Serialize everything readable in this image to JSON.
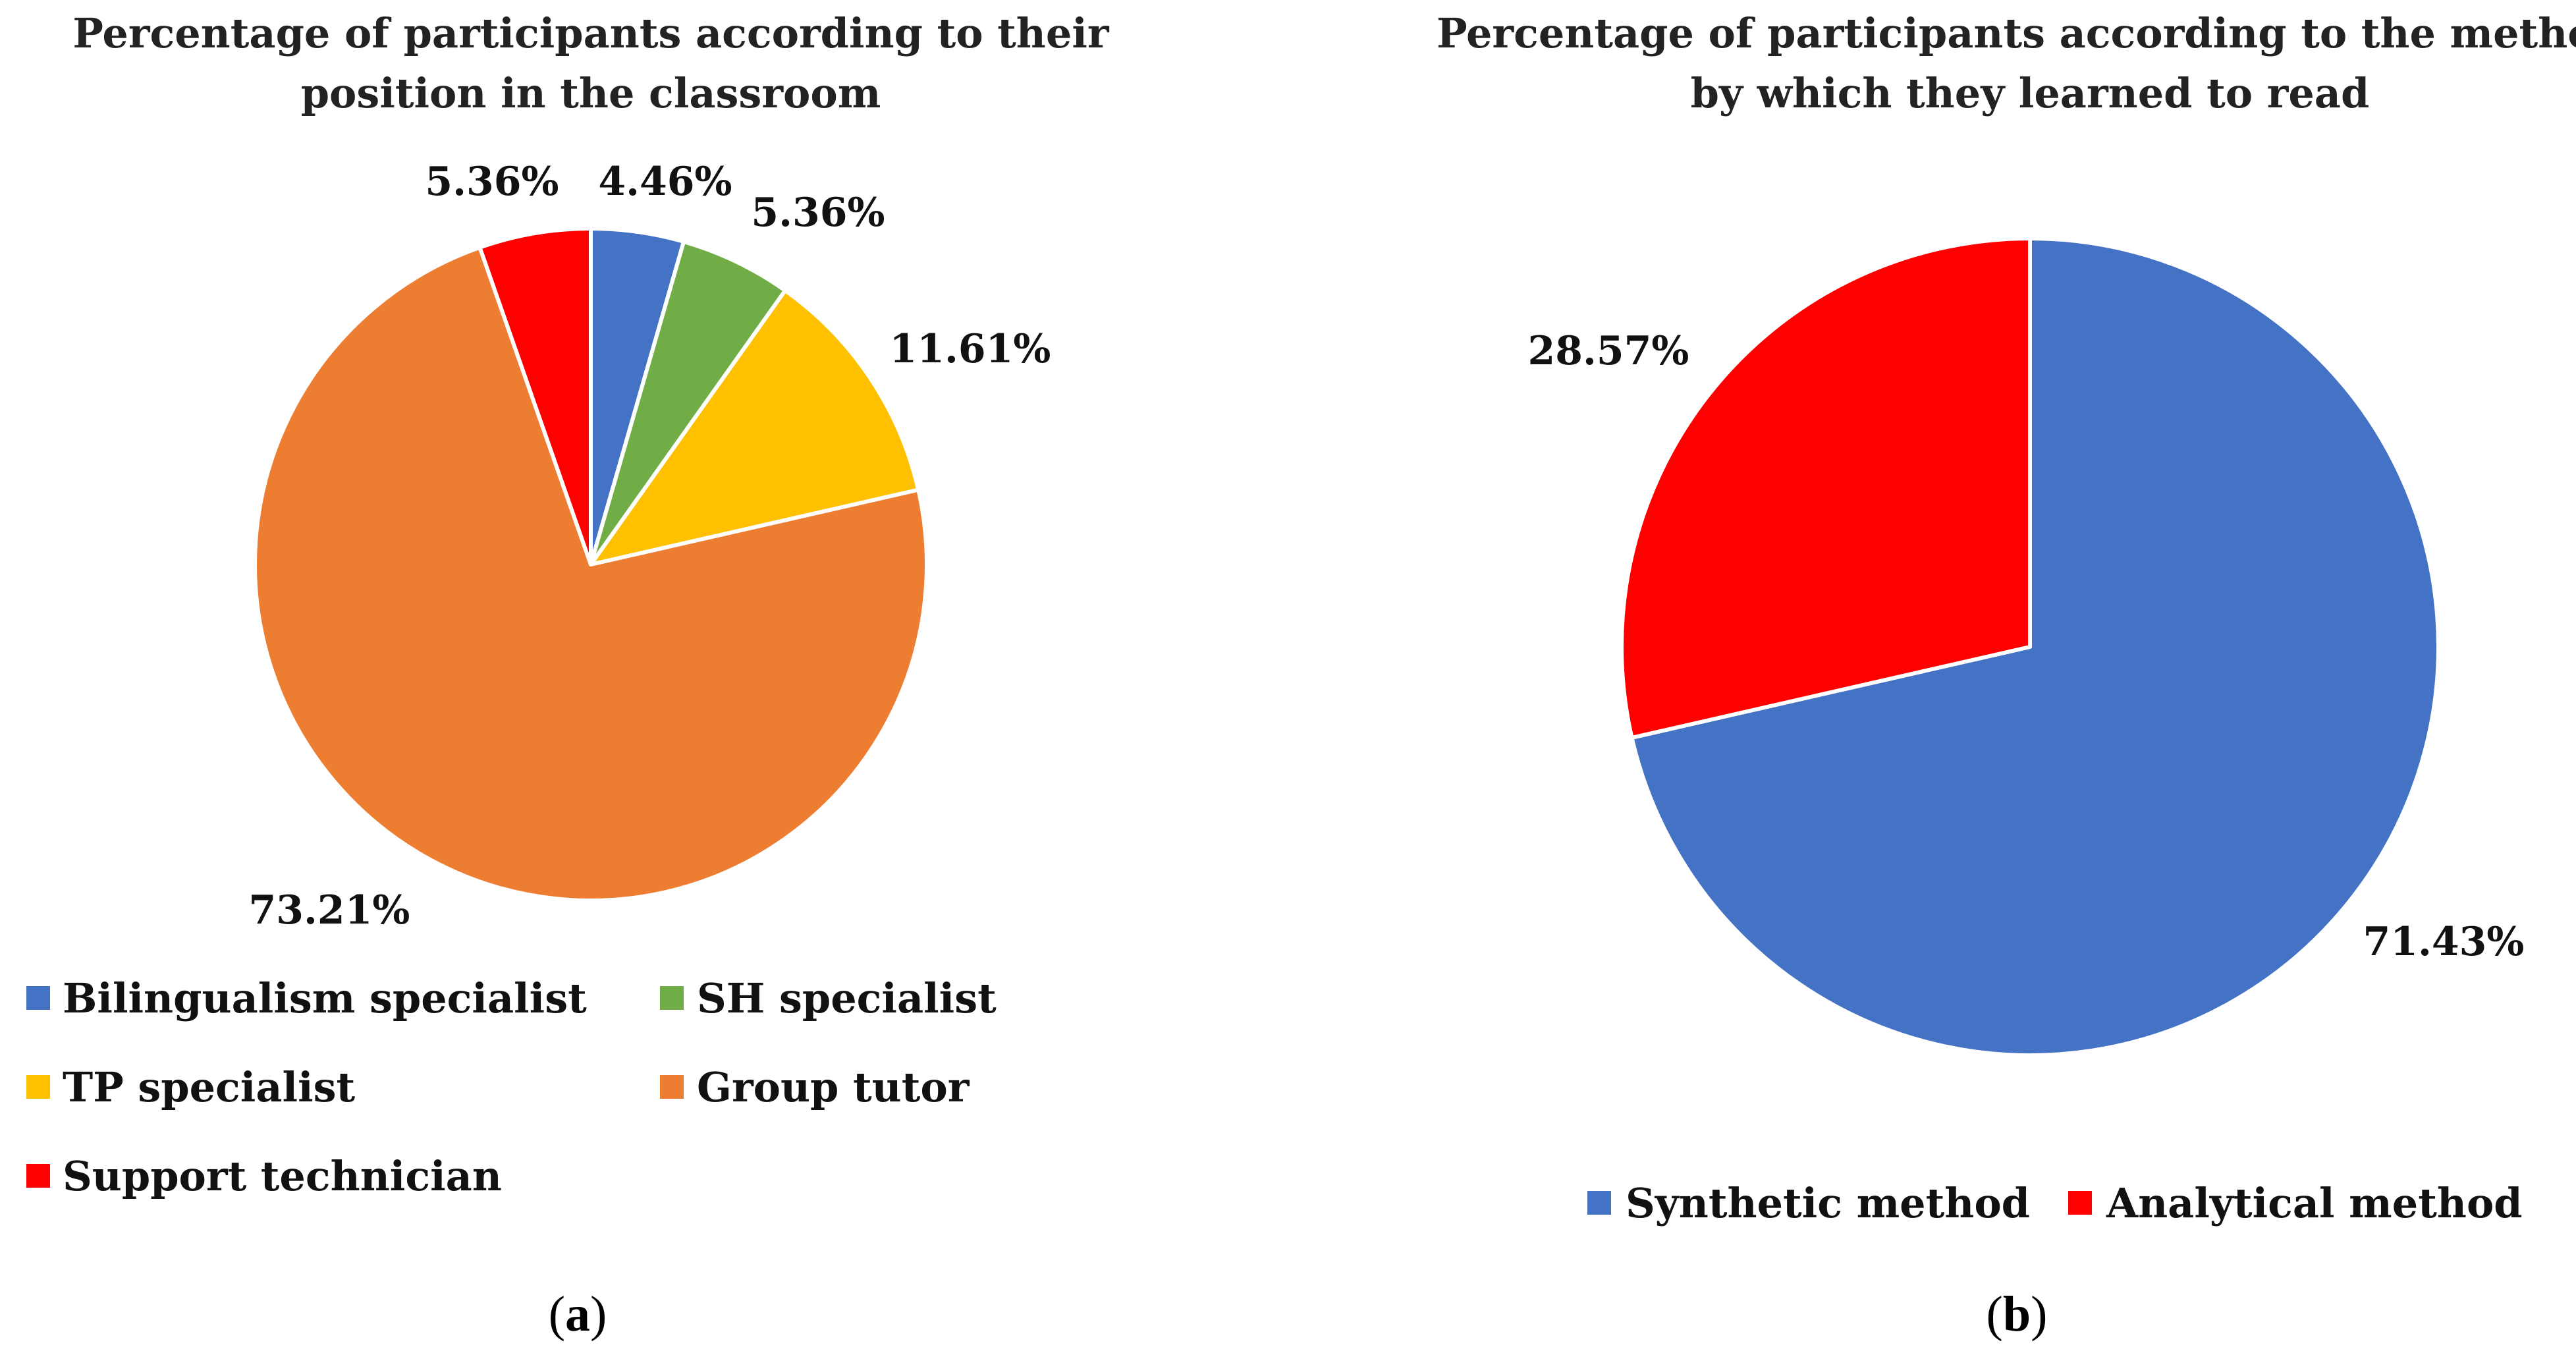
{
  "chart_data": [
    {
      "type": "pie",
      "title": [
        "Percentage of participants according to their",
        "position in the classroom"
      ],
      "caption": {
        "open": "(",
        "letter": "a",
        "close": ")"
      },
      "start_angle_deg": 0,
      "direction": "clockwise",
      "slices": [
        {
          "name": "Bilingualism specialist",
          "value": 4.46,
          "label": "4.46%",
          "color": "#4472C4"
        },
        {
          "name": "SH specialist",
          "value": 5.36,
          "label": "5.36%",
          "color": "#70AD47"
        },
        {
          "name": "TP specialist",
          "value": 11.61,
          "label": "11.61%",
          "color": "#FFC000"
        },
        {
          "name": "Group tutor",
          "value": 73.21,
          "label": "73.21%",
          "color": "#ED7D31"
        },
        {
          "name": "Support technician",
          "value": 5.36,
          "label": "5.36%",
          "color": "#FF0000"
        }
      ],
      "legend": [
        "Bilingualism specialist",
        "SH specialist",
        "TP specialist",
        "Group tutor",
        "Support technician"
      ]
    },
    {
      "type": "pie",
      "title": [
        "Percentage of participants according to the method",
        "by which they learned to read"
      ],
      "caption": {
        "open": "(",
        "letter": "b",
        "close": ")"
      },
      "start_angle_deg": 0,
      "direction": "clockwise",
      "slices": [
        {
          "name": "Synthetic method",
          "value": 71.43,
          "label": "71.43%",
          "color": "#4472C4"
        },
        {
          "name": "Analytical method",
          "value": 28.57,
          "label": "28.57%",
          "color": "#FF0000"
        }
      ],
      "legend": [
        "Synthetic method",
        "Analytical method"
      ]
    }
  ]
}
